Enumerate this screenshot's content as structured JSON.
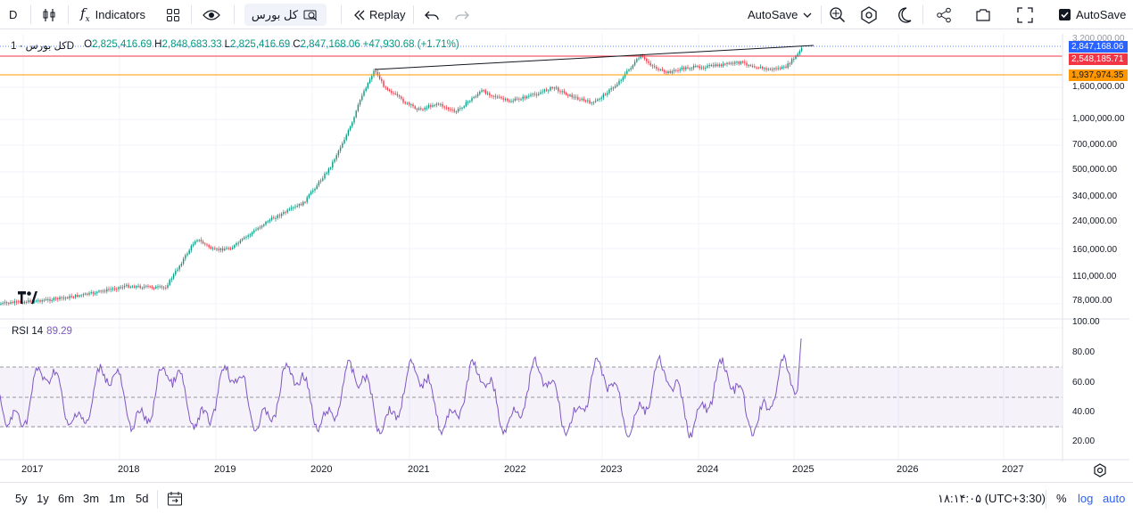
{
  "toolbar": {
    "interval": "D",
    "indicators_label": "Indicators",
    "symbol_search": "کل بورس",
    "replay_label": "Replay",
    "autosave_dropdown": "AutoSave",
    "autosave_checkbox_label": "AutoSave",
    "autosave_checked": true
  },
  "legend": {
    "symbol": "کل بورس · 1D",
    "open_label": "O",
    "open": "2,825,416.69",
    "high_label": "H",
    "high": "2,848,683.33",
    "low_label": "L",
    "low": "2,825,416.69",
    "close_label": "C",
    "close": "2,847,168.06",
    "change": "+47,930.68 (+1.71%)"
  },
  "price_scale": {
    "labels": [
      "3,200,000.00",
      "1,600,000.00",
      "1,000,000.00",
      "700,000.00",
      "500,000.00",
      "340,000.00",
      "240,000.00",
      "160,000.00",
      "110,000.00",
      "78,000.00"
    ],
    "tags": [
      {
        "value": "2,847,168.06",
        "color": "#2962ff"
      },
      {
        "value": "2,548,185.71",
        "color": "#f23645"
      },
      {
        "value": "1,937,974.35",
        "color": "#ff9800"
      }
    ]
  },
  "rsi": {
    "label": "RSI 14",
    "value": "89.29",
    "scale": [
      "100.00",
      "80.00",
      "60.00",
      "40.00",
      "20.00"
    ],
    "upper": 70,
    "middle": 50,
    "lower": 30,
    "line_color": "#7e57c2"
  },
  "time_axis": [
    "2017",
    "2018",
    "2019",
    "2020",
    "2021",
    "2022",
    "2023",
    "2024",
    "2025",
    "2026",
    "2027"
  ],
  "bottom_bar": {
    "ranges": [
      "5y",
      "1y",
      "6m",
      "3m",
      "1m",
      "5d"
    ],
    "clock": "۱۸:۱۴:۰۵ (UTC+3:30)",
    "percent": "%",
    "log": "log",
    "auto": "auto"
  },
  "colors": {
    "up": "#089981",
    "down": "#f23645",
    "accent": "#2962ff"
  }
}
